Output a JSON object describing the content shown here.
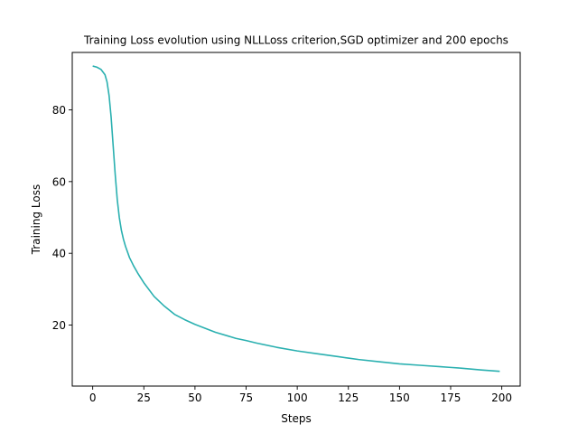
{
  "chart_data": {
    "type": "line",
    "title": "Training Loss evolution using NLLLoss criterion,SGD optimizer and 200 epochs",
    "xlabel": "Steps",
    "ylabel": "Training Loss",
    "xlim": [
      -10,
      209
    ],
    "ylim": [
      3,
      96
    ],
    "xticks": [
      0,
      25,
      50,
      75,
      100,
      125,
      150,
      175,
      200
    ],
    "yticks": [
      20,
      40,
      60,
      80
    ],
    "grid": false,
    "series": [
      {
        "color": "#2ab0b0",
        "x": [
          0,
          2,
          4,
          6,
          7,
          8,
          9,
          10,
          11,
          12,
          13,
          14,
          15,
          16,
          18,
          20,
          22,
          25,
          30,
          35,
          40,
          45,
          50,
          60,
          70,
          75,
          80,
          90,
          100,
          110,
          120,
          125,
          130,
          140,
          150,
          160,
          170,
          175,
          180,
          190,
          199
        ],
        "y": [
          92.2,
          91.9,
          91.3,
          89.8,
          87.8,
          84.0,
          78.0,
          70.0,
          62.0,
          55.0,
          50.0,
          46.5,
          44.0,
          42.0,
          38.8,
          36.5,
          34.5,
          31.8,
          28.0,
          25.3,
          23.0,
          21.5,
          20.2,
          18.0,
          16.3,
          15.7,
          15.0,
          13.8,
          12.8,
          12.0,
          11.2,
          10.8,
          10.4,
          9.8,
          9.2,
          8.8,
          8.4,
          8.2,
          8.0,
          7.5,
          7.1
        ]
      }
    ]
  }
}
